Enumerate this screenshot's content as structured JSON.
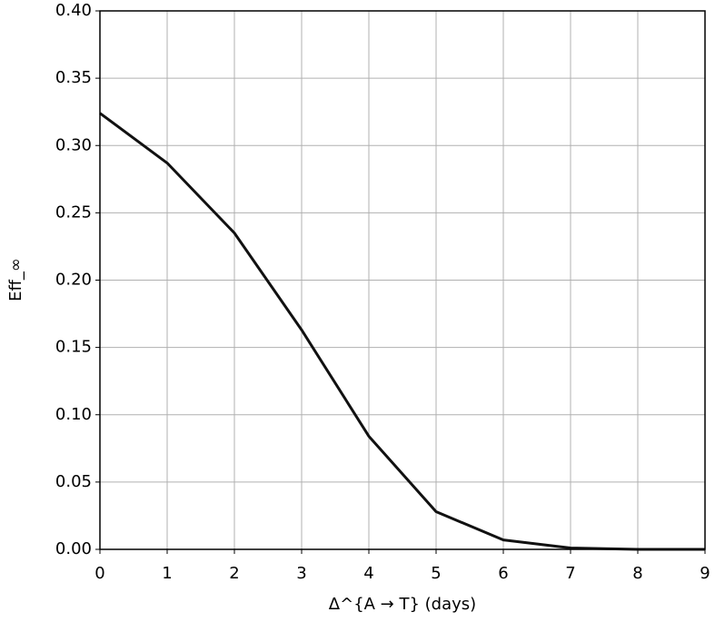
{
  "chart_data": {
    "type": "line",
    "x_label": "Δ^{A → T} (days)",
    "y_label": "Eff_∞",
    "x": [
      0,
      1,
      2,
      3,
      4,
      5,
      6,
      7,
      8,
      9
    ],
    "series": [
      {
        "color": "#111111",
        "values": [
          0.324,
          0.287,
          0.235,
          0.163,
          0.084,
          0.028,
          0.007,
          0.001,
          0,
          0
        ]
      }
    ],
    "xlim": [
      0,
      9
    ],
    "ylim": [
      0,
      0.4
    ],
    "xticks": [
      0,
      1,
      2,
      3,
      4,
      5,
      6,
      7,
      8,
      9
    ],
    "yticks": [
      {
        "value": 0,
        "label": "0.00"
      },
      {
        "value": 0.05,
        "label": "0.05"
      },
      {
        "value": 0.1,
        "label": "0.10"
      },
      {
        "value": 0.15,
        "label": "0.15"
      },
      {
        "value": 0.2,
        "label": "0.20"
      },
      {
        "value": 0.25,
        "label": "0.25"
      },
      {
        "value": 0.3,
        "label": "0.30"
      },
      {
        "value": 0.35,
        "label": "0.35"
      },
      {
        "value": 0.4,
        "label": "0.40"
      }
    ],
    "grid": true
  }
}
